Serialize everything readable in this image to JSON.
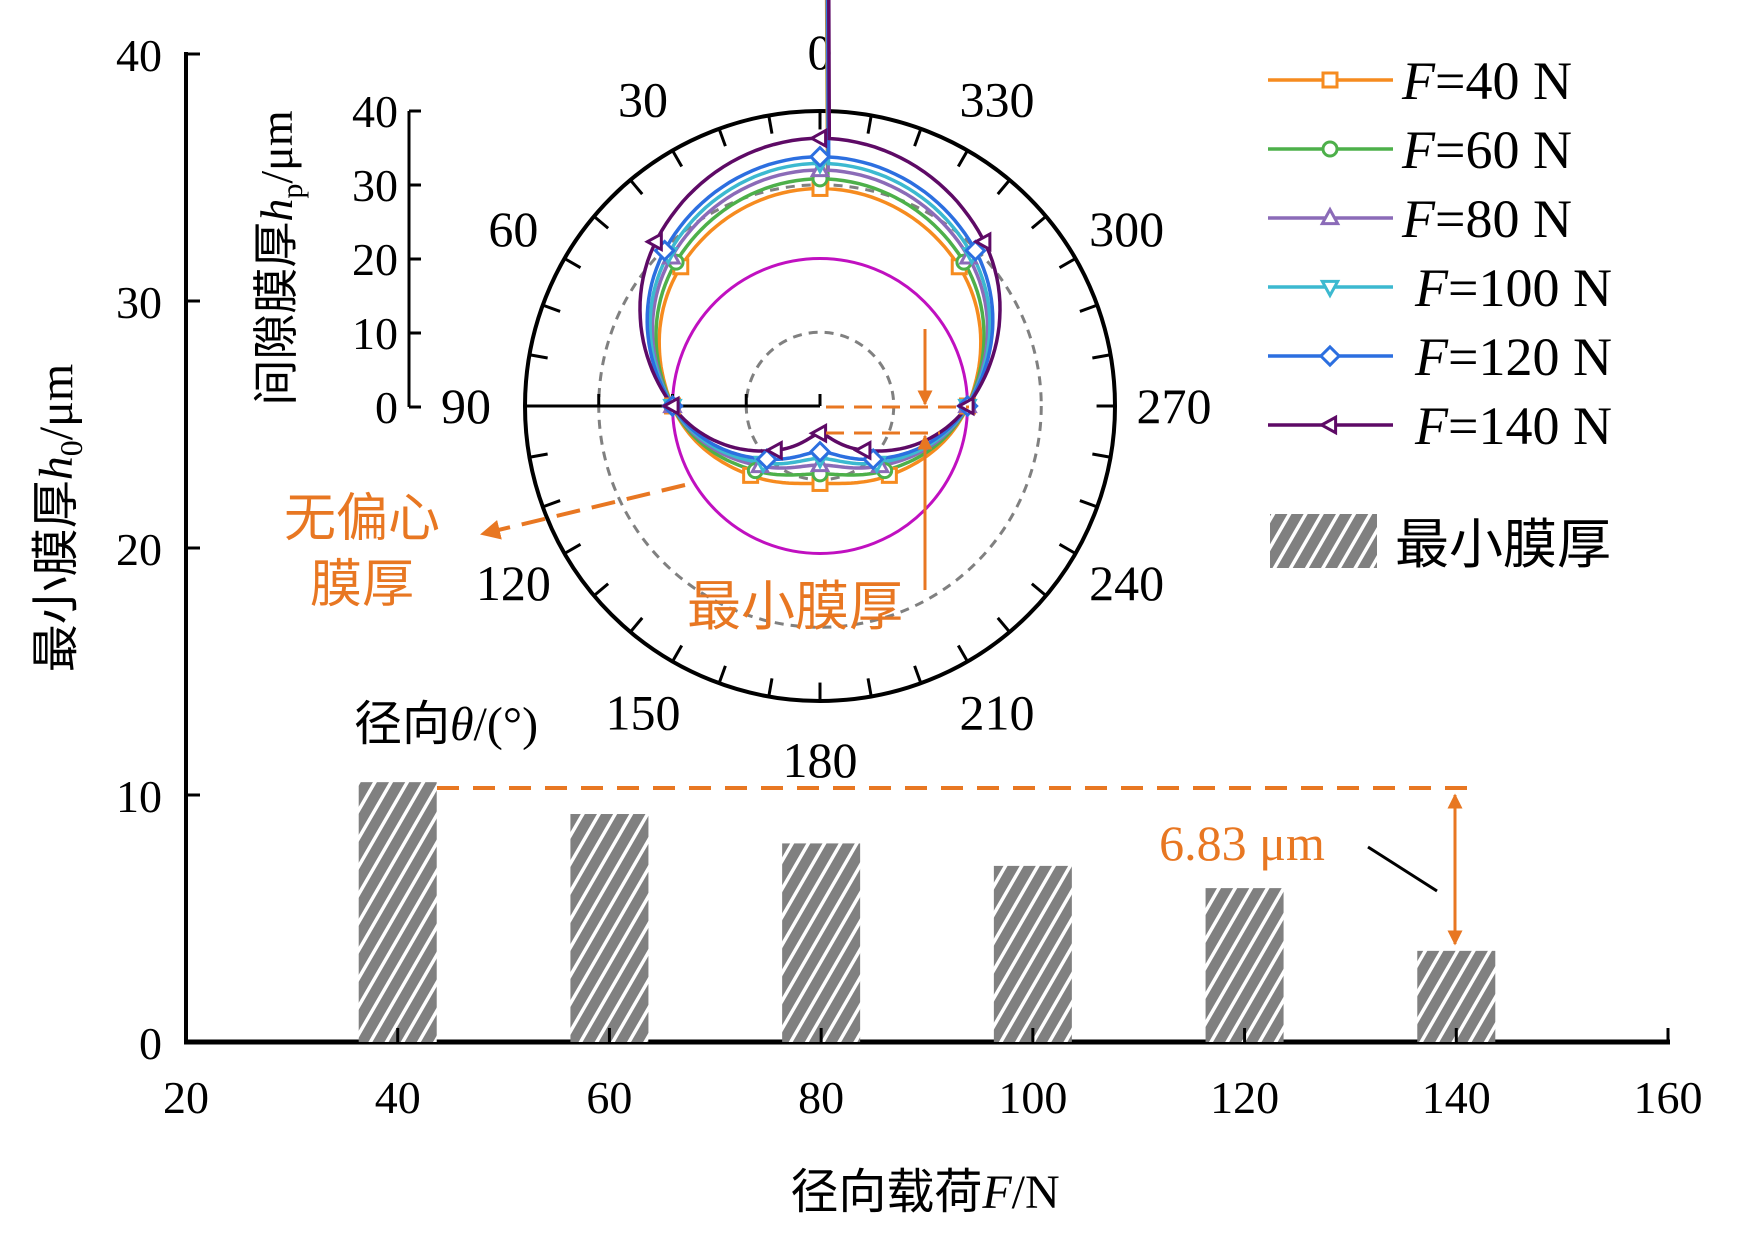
{
  "chart_data": [
    {
      "type": "bar",
      "xlabel": "径向载荷F/N",
      "ylabel": "最小膜厚h0/μm",
      "xlim": [
        20,
        160
      ],
      "ylim": [
        0,
        40
      ],
      "x_ticks": [
        "20",
        "40",
        "60",
        "80",
        "100",
        "120",
        "140",
        "160"
      ],
      "y_ticks": [
        "0",
        "10",
        "20",
        "30",
        "40"
      ],
      "categories": [
        40,
        60,
        80,
        100,
        120,
        140
      ],
      "series": [
        {
          "name": "最小膜厚",
          "values": [
            10.52,
            9.23,
            8.04,
            7.13,
            6.23,
            3.69
          ]
        }
      ],
      "legend_position": "right",
      "hatch_color": "#808080",
      "annotation": {
        "text": "6.83 μm",
        "color": "#E87722"
      }
    },
    {
      "type": "polar-line",
      "theta_label": "径向θ/(°)",
      "r_label": "间隙膜厚hp/μm",
      "rlim": [
        0,
        40
      ],
      "r_ticks": [
        "0",
        "10",
        "20",
        "30",
        "40"
      ],
      "theta_ticks": [
        "0",
        "30",
        "60",
        "90",
        "120",
        "150",
        "180",
        "210",
        "240",
        "270",
        "300",
        "330"
      ],
      "theta_direction": "counterclockwise, 0 at top",
      "theta": [
        0,
        45,
        90,
        135,
        180,
        225,
        270,
        315
      ],
      "series": [
        {
          "name": "F=40 N",
          "label_f": "F",
          "label_rest": "=40 N",
          "color": "#F68B1F",
          "marker": "square",
          "values": [
            29.5,
            26.7,
            20,
            13.3,
            10.5,
            13.3,
            20,
            26.7
          ]
        },
        {
          "name": "F=60 N",
          "label_f": "F",
          "label_rest": "=60 N",
          "color": "#4DB04A",
          "marker": "circle",
          "values": [
            30.8,
            27.6,
            20,
            12.4,
            9.2,
            12.4,
            20,
            27.6
          ]
        },
        {
          "name": "F=80 N",
          "label_f": "F",
          "label_rest": "=80 N",
          "color": "#8B6BB8",
          "marker": "triangle-up",
          "values": [
            32.0,
            28.5,
            20,
            11.5,
            8.0,
            11.5,
            20,
            28.5
          ]
        },
        {
          "name": "F=100 N",
          "label_f": "F",
          "label_rest": "=100 N",
          "color": "#3CB9D0",
          "marker": "triangle-down",
          "values": [
            32.9,
            29.1,
            20,
            10.9,
            7.1,
            10.9,
            20,
            29.1
          ]
        },
        {
          "name": "F=120 N",
          "label_f": "F",
          "label_rest": "=120 N",
          "color": "#2C6FE0",
          "marker": "diamond",
          "values": [
            33.8,
            29.8,
            20,
            10.2,
            6.2,
            10.2,
            20,
            29.8
          ]
        },
        {
          "name": "F=140 N",
          "label_f": "F",
          "label_rest": "=140 N",
          "color": "#5E0A66",
          "marker": "triangle-left",
          "values": [
            36.3,
            31.5,
            20,
            8.5,
            3.7,
            8.5,
            20,
            31.5
          ]
        }
      ],
      "reference_circle": {
        "r": 20,
        "color": "#C010C0",
        "label": "无偏心膜厚",
        "label_line1": "无偏心",
        "label_line2": "膜厚"
      },
      "grid_circles": [
        10,
        30
      ],
      "annotation": {
        "text": "最小膜厚",
        "color": "#E87722"
      }
    }
  ],
  "labels": {
    "ylabel_main": "最小膜厚",
    "ylabel_sym": "h",
    "ylabel_sub": "0",
    "ylabel_unit": "/μm",
    "xlabel_main": "径向载荷",
    "xlabel_sym": "F",
    "xlabel_unit": "/N",
    "rlabel_main": "间隙膜厚",
    "rlabel_sym": "h",
    "rlabel_sub": "p",
    "rlabel_unit": "/μm",
    "theta_main": "径向",
    "theta_sym": "θ",
    "theta_unit": "/(°)",
    "bar_legend": "最小膜厚",
    "nonecc_1": "无偏心",
    "nonecc_2": "膜厚",
    "minfilm": "最小膜厚",
    "delta": "6.83 μm"
  }
}
